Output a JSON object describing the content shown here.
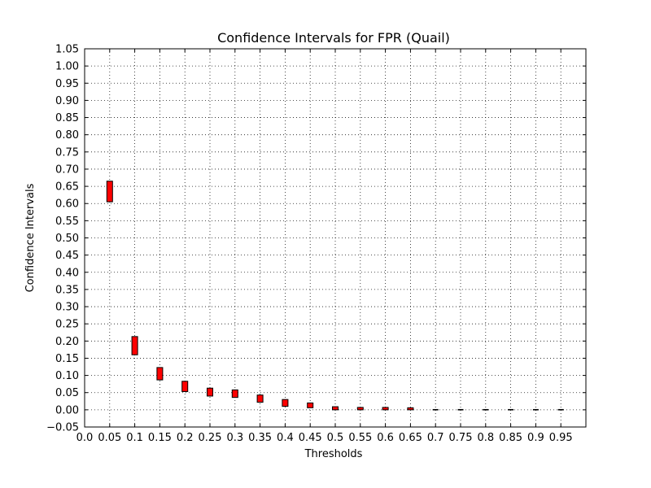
{
  "chart_data": {
    "type": "box",
    "title": "Confidence Intervals for FPR (Quail)",
    "xlabel": "Thresholds",
    "ylabel": "Confidence Intervals",
    "xlim": [
      0.0,
      1.0
    ],
    "ylim": [
      -0.05,
      1.05
    ],
    "grid": true,
    "x_ticks": [
      "0.0",
      "0.05",
      "0.1",
      "0.15",
      "0.2",
      "0.25",
      "0.3",
      "0.35",
      "0.4",
      "0.45",
      "0.5",
      "0.55",
      "0.6",
      "0.65",
      "0.7",
      "0.75",
      "0.8",
      "0.85",
      "0.9",
      "0.95"
    ],
    "y_ticks": [
      "−0.05",
      "0.00",
      "0.05",
      "0.10",
      "0.15",
      "0.20",
      "0.25",
      "0.30",
      "0.35",
      "0.40",
      "0.45",
      "0.50",
      "0.55",
      "0.60",
      "0.65",
      "0.70",
      "0.75",
      "0.80",
      "0.85",
      "0.90",
      "0.95",
      "1.00",
      "1.05"
    ],
    "series": [
      {
        "color": "#ff0000",
        "x": [
          0.05,
          0.1,
          0.15,
          0.2,
          0.25,
          0.3,
          0.35,
          0.4,
          0.45,
          0.5,
          0.55,
          0.6,
          0.65,
          0.7,
          0.75,
          0.8,
          0.85,
          0.9,
          0.95
        ],
        "low": [
          0.605,
          0.16,
          0.087,
          0.053,
          0.04,
          0.036,
          0.022,
          0.01,
          0.006,
          0.0,
          0.0,
          0.0,
          0.0,
          0.0,
          0.0,
          0.0,
          0.0,
          0.0,
          0.0
        ],
        "high": [
          0.665,
          0.213,
          0.123,
          0.083,
          0.063,
          0.058,
          0.043,
          0.03,
          0.02,
          0.009,
          0.007,
          0.007,
          0.006,
          0.001,
          0.001,
          0.001,
          0.001,
          0.001,
          0.001
        ]
      }
    ]
  }
}
